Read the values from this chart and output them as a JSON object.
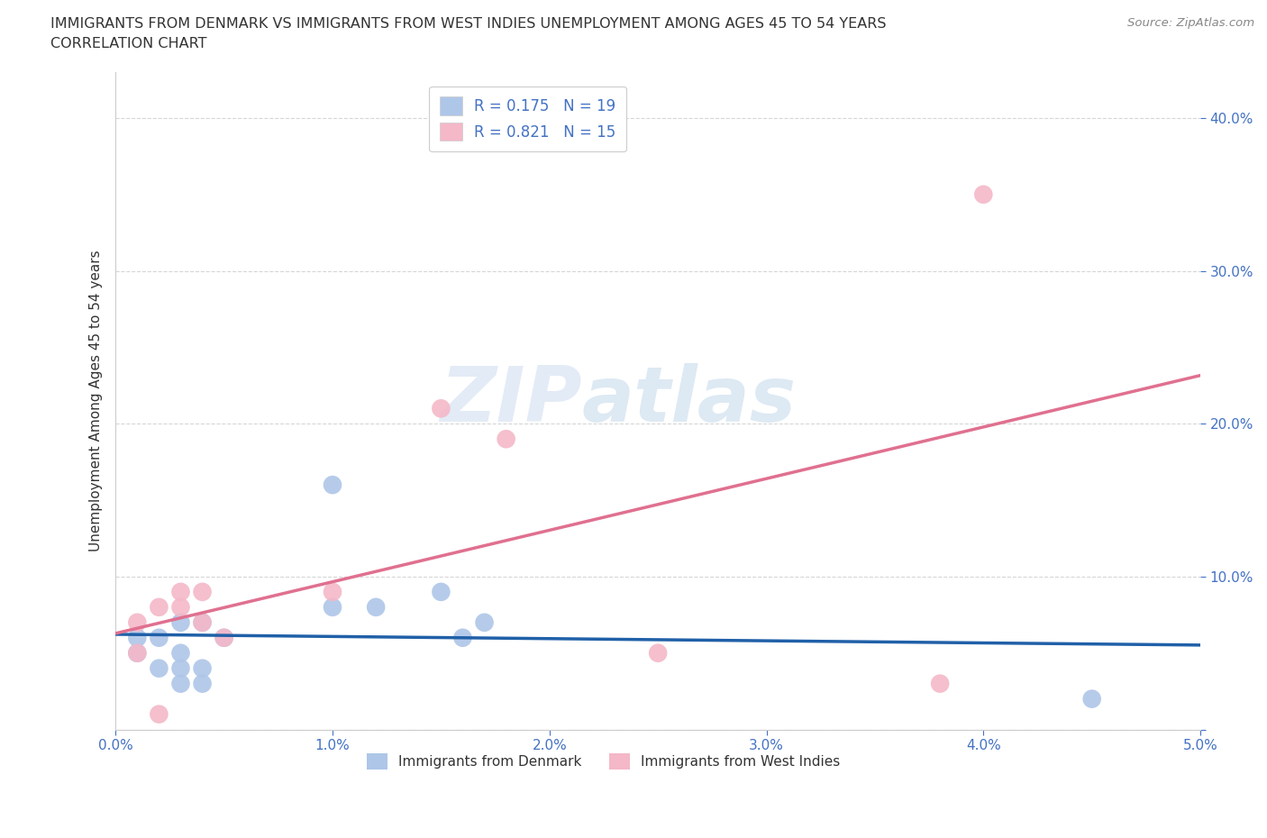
{
  "title_line1": "IMMIGRANTS FROM DENMARK VS IMMIGRANTS FROM WEST INDIES UNEMPLOYMENT AMONG AGES 45 TO 54 YEARS",
  "title_line2": "CORRELATION CHART",
  "source": "Source: ZipAtlas.com",
  "ylabel_label": "Unemployment Among Ages 45 to 54 years",
  "xlim": [
    0.0,
    0.05
  ],
  "ylim": [
    0.0,
    0.43
  ],
  "xticks": [
    0.0,
    0.01,
    0.02,
    0.03,
    0.04,
    0.05
  ],
  "yticks": [
    0.0,
    0.1,
    0.2,
    0.3,
    0.4
  ],
  "xticklabels": [
    "0.0%",
    "1.0%",
    "2.0%",
    "3.0%",
    "4.0%",
    "5.0%"
  ],
  "yticklabels": [
    "",
    "10.0%",
    "20.0%",
    "30.0%",
    "40.0%"
  ],
  "watermark_zip": "ZIP",
  "watermark_atlas": "atlas",
  "denmark_color": "#aec6e8",
  "west_indies_color": "#f4b8c8",
  "denmark_line_color": "#2060a8",
  "west_indies_line_color": "#e07090",
  "denmark_R": 0.175,
  "denmark_N": 19,
  "west_indies_R": 0.821,
  "west_indies_N": 15,
  "denmark_x": [
    0.001,
    0.001,
    0.002,
    0.002,
    0.003,
    0.003,
    0.003,
    0.003,
    0.004,
    0.004,
    0.004,
    0.005,
    0.01,
    0.01,
    0.012,
    0.015,
    0.016,
    0.017,
    0.045
  ],
  "denmark_y": [
    0.06,
    0.05,
    0.04,
    0.06,
    0.03,
    0.04,
    0.05,
    0.07,
    0.03,
    0.04,
    0.07,
    0.06,
    0.16,
    0.08,
    0.08,
    0.09,
    0.06,
    0.07,
    0.02
  ],
  "west_indies_x": [
    0.001,
    0.001,
    0.002,
    0.002,
    0.003,
    0.003,
    0.004,
    0.004,
    0.005,
    0.01,
    0.015,
    0.018,
    0.025,
    0.038,
    0.04
  ],
  "west_indies_y": [
    0.05,
    0.07,
    0.08,
    0.01,
    0.08,
    0.09,
    0.07,
    0.09,
    0.06,
    0.09,
    0.21,
    0.19,
    0.05,
    0.03,
    0.35
  ],
  "background_color": "#ffffff",
  "grid_color": "#cccccc",
  "title_color": "#333333",
  "axis_color": "#4472c4",
  "legend_label_color": "#4472c4"
}
